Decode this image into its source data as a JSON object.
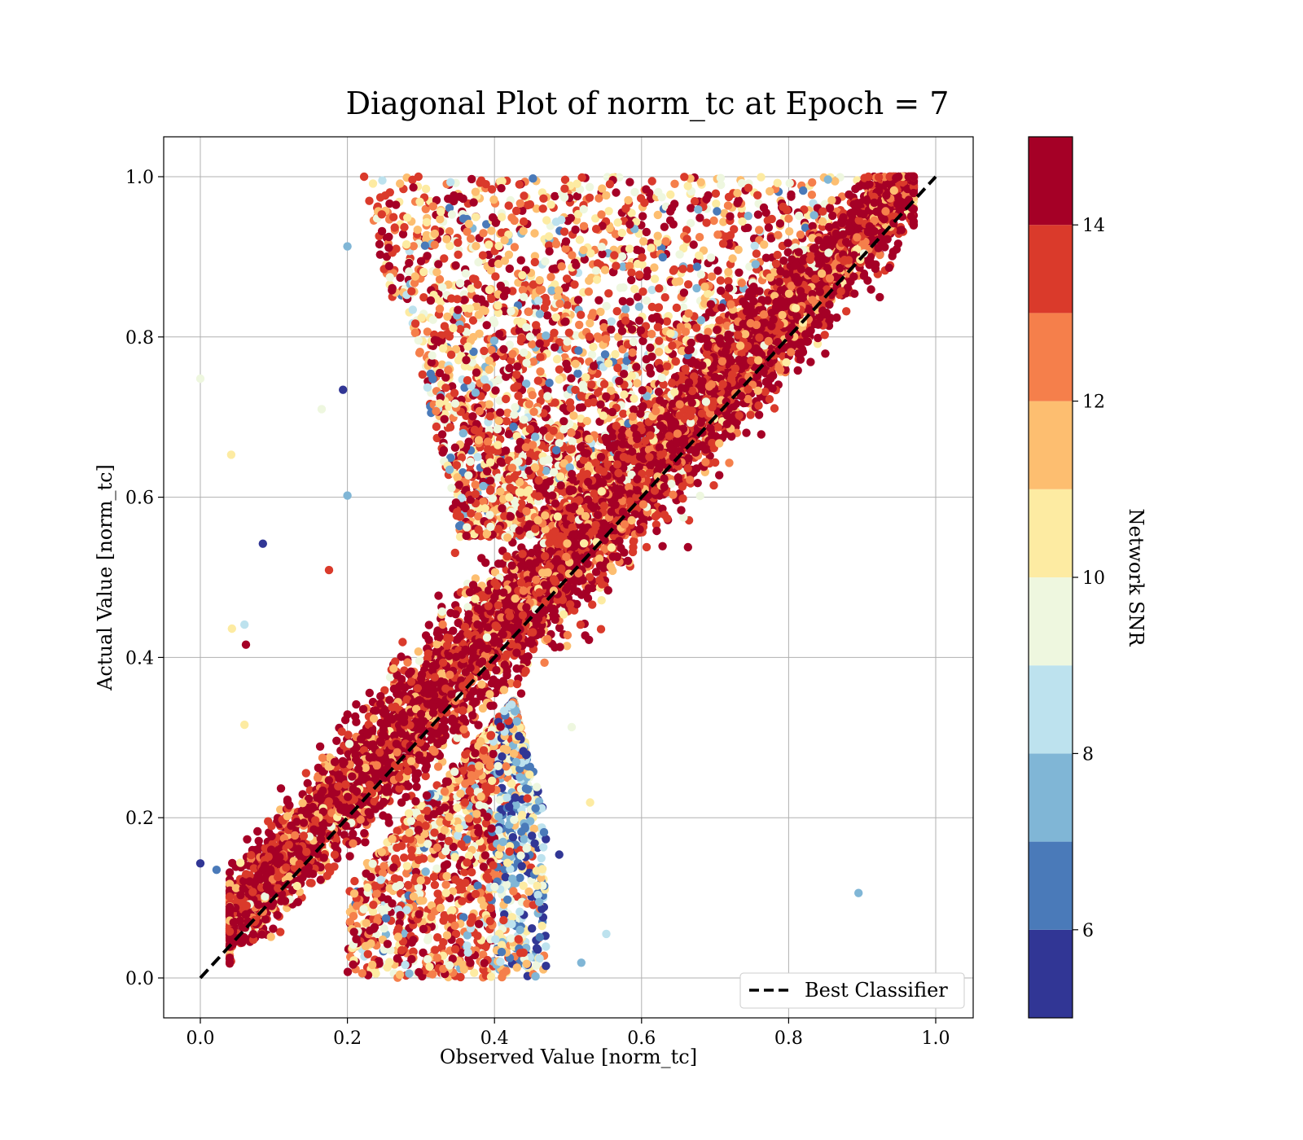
{
  "chart_data": {
    "type": "scatter",
    "title": "Diagonal Plot of norm_tc at Epoch = 7",
    "xlabel": "Observed Value [norm_tc]",
    "ylabel": "Actual Value [norm_tc]",
    "xlim": [
      -0.05,
      1.05
    ],
    "ylim": [
      -0.05,
      1.05
    ],
    "xticks": [
      "0.0",
      "0.2",
      "0.4",
      "0.6",
      "0.8",
      "1.0"
    ],
    "yticks": [
      "0.0",
      "0.2",
      "0.4",
      "0.6",
      "0.8",
      "1.0"
    ],
    "grid": true,
    "colorbar": {
      "label": "Network SNR",
      "min": 5,
      "max": 15,
      "ticks": [
        "6",
        "8",
        "10",
        "12",
        "14"
      ],
      "colors": [
        "#313695",
        "#4575b4",
        "#74add1",
        "#abd9e9",
        "#e0f3f8",
        "#fee090",
        "#fdae61",
        "#f46d43",
        "#d73027",
        "#a50026"
      ],
      "bands": [
        {
          "from": 5,
          "to": 6,
          "color": "#313695"
        },
        {
          "from": 6,
          "to": 7,
          "color": "#4a7ab9"
        },
        {
          "from": 7,
          "to": 8,
          "color": "#80b6d6"
        },
        {
          "from": 8,
          "to": 9,
          "color": "#bde2ee"
        },
        {
          "from": 9,
          "to": 10,
          "color": "#eef7df"
        },
        {
          "from": 10,
          "to": 11,
          "color": "#fdeba2"
        },
        {
          "from": 11,
          "to": 12,
          "color": "#fdbe70"
        },
        {
          "from": 12,
          "to": 13,
          "color": "#f57f4b"
        },
        {
          "from": 13,
          "to": 14,
          "color": "#da3a2b"
        },
        {
          "from": 14,
          "to": 15,
          "color": "#a50026"
        }
      ]
    },
    "legend": {
      "position": "lower-right",
      "entries": [
        {
          "label": "Best Classifier",
          "style": "dashed",
          "color": "#000000"
        }
      ]
    },
    "reference_line": {
      "x": [
        0,
        1
      ],
      "y": [
        0,
        1
      ]
    },
    "series_approx": {
      "regions": [
        {
          "description": "main diagonal band",
          "x_range": [
            0.04,
            0.97
          ],
          "snr_range": [
            12,
            15
          ]
        },
        {
          "description": "upper-left wedge",
          "x_range": [
            0.2,
            0.85
          ],
          "y_range": [
            0.6,
            1.0
          ],
          "snr_range": [
            6,
            15
          ]
        },
        {
          "description": "lower-middle cluster",
          "x_range": [
            0.2,
            0.48
          ],
          "y_range": [
            0.0,
            0.35
          ],
          "snr_range": [
            5,
            13
          ]
        }
      ],
      "outliers": [
        {
          "x": 0.0,
          "y": 0.748,
          "snr": 9.5
        },
        {
          "x": 0.0,
          "y": 0.143,
          "snr": 5.5
        },
        {
          "x": 0.022,
          "y": 0.135,
          "snr": 6.5
        },
        {
          "x": 0.042,
          "y": 0.653,
          "snr": 10.5
        },
        {
          "x": 0.085,
          "y": 0.542,
          "snr": 5.5
        },
        {
          "x": 0.06,
          "y": 0.441,
          "snr": 8.5
        },
        {
          "x": 0.062,
          "y": 0.416,
          "snr": 14.5
        },
        {
          "x": 0.043,
          "y": 0.436,
          "snr": 10.5
        },
        {
          "x": 0.06,
          "y": 0.316,
          "snr": 10.5
        },
        {
          "x": 0.165,
          "y": 0.71,
          "snr": 9.5
        },
        {
          "x": 0.194,
          "y": 0.734,
          "snr": 5.5
        },
        {
          "x": 0.2,
          "y": 0.602,
          "snr": 7.5
        },
        {
          "x": 0.175,
          "y": 0.509,
          "snr": 13.5
        },
        {
          "x": 0.2,
          "y": 0.913,
          "snr": 7.5
        },
        {
          "x": 0.895,
          "y": 0.106,
          "snr": 7.5
        },
        {
          "x": 0.552,
          "y": 0.055,
          "snr": 8.5
        },
        {
          "x": 0.518,
          "y": 0.019,
          "snr": 7.5
        },
        {
          "x": 0.53,
          "y": 0.219,
          "snr": 10.5
        },
        {
          "x": 0.505,
          "y": 0.313,
          "snr": 9.5
        },
        {
          "x": 0.488,
          "y": 0.154,
          "snr": 5.5
        }
      ]
    }
  }
}
